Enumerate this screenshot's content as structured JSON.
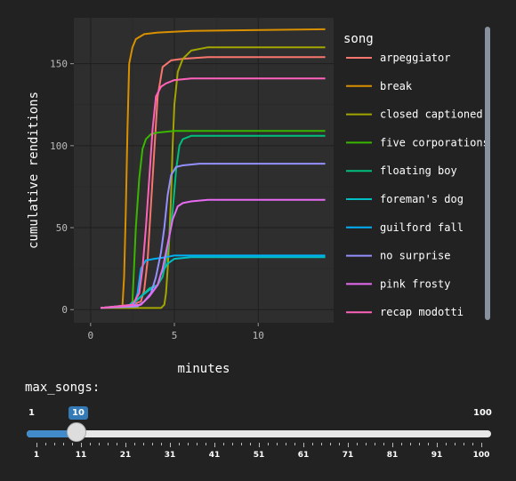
{
  "chart_data": {
    "type": "line",
    "xlabel": "minutes",
    "ylabel": "cumulative renditions",
    "xlim": [
      -1,
      14.5
    ],
    "ylim": [
      -8,
      178
    ],
    "xticks": [
      0,
      5,
      10
    ],
    "yticks": [
      0,
      50,
      100,
      150
    ],
    "legend_title": "song",
    "legend_position": "right",
    "grid": true,
    "series": [
      {
        "name": "arpeggiator",
        "color": "#F8766D",
        "x": [
          0.6,
          2.0,
          2.5,
          3.0,
          3.2,
          3.4,
          3.7,
          4.0,
          4.3,
          4.8,
          5.5,
          7,
          14
        ],
        "y": [
          1,
          2,
          3,
          5,
          12,
          30,
          80,
          130,
          148,
          152,
          153,
          154,
          154
        ]
      },
      {
        "name": "break",
        "color": "#D89000",
        "x": [
          0.6,
          1.9,
          2.0,
          2.1,
          2.2,
          2.3,
          2.5,
          2.7,
          3.2,
          4.0,
          6.0,
          14
        ],
        "y": [
          1,
          2,
          20,
          60,
          110,
          150,
          160,
          165,
          168,
          169,
          170,
          171
        ]
      },
      {
        "name": "closed captioned",
        "color": "#A3A500",
        "x": [
          0.6,
          4.2,
          4.4,
          4.5,
          4.6,
          4.7,
          4.8,
          4.9,
          5.0,
          5.2,
          5.5,
          6.0,
          7,
          14
        ],
        "y": [
          1,
          1,
          3,
          10,
          25,
          45,
          70,
          100,
          125,
          145,
          153,
          158,
          160,
          160
        ]
      },
      {
        "name": "five corporations",
        "color": "#39B600",
        "x": [
          0.6,
          2.3,
          2.5,
          2.7,
          2.9,
          3.1,
          3.3,
          3.6,
          4.0,
          5.0,
          14
        ],
        "y": [
          1,
          2,
          5,
          50,
          80,
          98,
          104,
          107,
          108,
          109,
          109
        ]
      },
      {
        "name": "floating boy",
        "color": "#00BF7D",
        "x": [
          0.6,
          2.5,
          3.0,
          3.5,
          4.0,
          4.3,
          4.5,
          4.7,
          4.9,
          5.1,
          5.3,
          5.5,
          6.0,
          7,
          14
        ],
        "y": [
          1,
          3,
          8,
          13,
          15,
          20,
          30,
          45,
          60,
          85,
          100,
          104,
          106,
          106,
          106
        ]
      },
      {
        "name": "foreman's dog",
        "color": "#00BFC4",
        "x": [
          0.6,
          2.2,
          2.6,
          3.0,
          3.5,
          4.0,
          4.2,
          4.6,
          5.0,
          6.0,
          14
        ],
        "y": [
          1,
          2,
          5,
          8,
          12,
          15,
          22,
          28,
          31,
          32,
          32
        ]
      },
      {
        "name": "guilford fall",
        "color": "#00B0F6",
        "x": [
          0.6,
          2.6,
          2.8,
          3.0,
          3.3,
          3.8,
          4.5,
          5.0,
          14
        ],
        "y": [
          1,
          3,
          10,
          25,
          30,
          31,
          32,
          33,
          33
        ]
      },
      {
        "name": "no surprise",
        "color": "#9590FF",
        "x": [
          0.6,
          2.8,
          3.2,
          3.6,
          3.9,
          4.2,
          4.4,
          4.6,
          4.8,
          5.1,
          5.5,
          6.5,
          14
        ],
        "y": [
          1,
          2,
          5,
          10,
          20,
          35,
          50,
          70,
          82,
          87,
          88,
          89,
          89
        ]
      },
      {
        "name": "pink frosty",
        "color": "#E76BF3",
        "x": [
          0.6,
          3.0,
          3.5,
          4.0,
          4.3,
          4.6,
          4.9,
          5.2,
          5.5,
          6.0,
          7,
          14
        ],
        "y": [
          1,
          3,
          8,
          15,
          25,
          40,
          55,
          63,
          65,
          66,
          67,
          67
        ]
      },
      {
        "name": "recap modotti",
        "color": "#FF62BC",
        "x": [
          0.6,
          2.5,
          2.9,
          3.1,
          3.3,
          3.5,
          3.7,
          3.9,
          4.2,
          4.5,
          5.0,
          6.0,
          14
        ],
        "y": [
          1,
          3,
          10,
          25,
          50,
          80,
          110,
          130,
          136,
          138,
          140,
          141,
          141
        ]
      }
    ]
  },
  "slider": {
    "label": "max_songs:",
    "min": 1,
    "max": 100,
    "value": 10,
    "min_label": "1",
    "max_label": "100",
    "value_label": "10",
    "grid_labels": [
      "1",
      "11",
      "21",
      "31",
      "41",
      "51",
      "61",
      "71",
      "81",
      "91",
      "100"
    ],
    "accent_color": "#337ab7"
  }
}
